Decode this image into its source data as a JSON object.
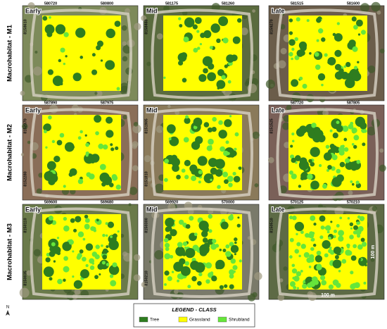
{
  "north": "N",
  "rows": [
    {
      "label": "Macrohabitat - M1",
      "panels": [
        {
          "stage": "Early",
          "top_coords": [
            "580720",
            "580800"
          ],
          "left_coords": [
            "8158610"
          ]
        },
        {
          "stage": "Mid",
          "top_coords": [
            "581175",
            "581260"
          ],
          "left_coords": [
            "8158460"
          ]
        },
        {
          "stage": "Late",
          "top_coords": [
            "581515",
            "581600"
          ],
          "left_coords": [
            "8159270"
          ]
        }
      ]
    },
    {
      "label": "Macrohabitat - M2",
      "panels": [
        {
          "stage": "Early",
          "top_coords": [
            "587890",
            "587975"
          ],
          "left_coords": [
            "8152370",
            "8152280"
          ]
        },
        {
          "stage": "Mid",
          "top_coords": [],
          "left_coords": [
            "8151905",
            "8151810"
          ]
        },
        {
          "stage": "Late",
          "top_coords": [
            "587720",
            "587805"
          ],
          "left_coords": [
            "8151525"
          ]
        }
      ]
    },
    {
      "label": "Macrohabitat - M3",
      "panels": [
        {
          "stage": "Early",
          "top_coords": [
            "569600",
            "569680"
          ],
          "left_coords": [
            "8150110",
            "8150035"
          ]
        },
        {
          "stage": "Mid",
          "top_coords": [
            "569920",
            "570000"
          ],
          "left_coords": [
            "8150300",
            "8150210"
          ]
        },
        {
          "stage": "Late",
          "top_coords": [
            "570125",
            "570210"
          ],
          "left_coords": [
            "8150510"
          ],
          "scale": [
            "100 m",
            "100 m"
          ]
        }
      ]
    }
  ],
  "legend": {
    "title": "LEGEND - CLASS",
    "classes": [
      {
        "name": "Tree",
        "color": "#2e7d1f"
      },
      {
        "name": "Grassland",
        "color": "#ffff00"
      },
      {
        "name": "Shrubland",
        "color": "#66e63a"
      }
    ]
  }
}
